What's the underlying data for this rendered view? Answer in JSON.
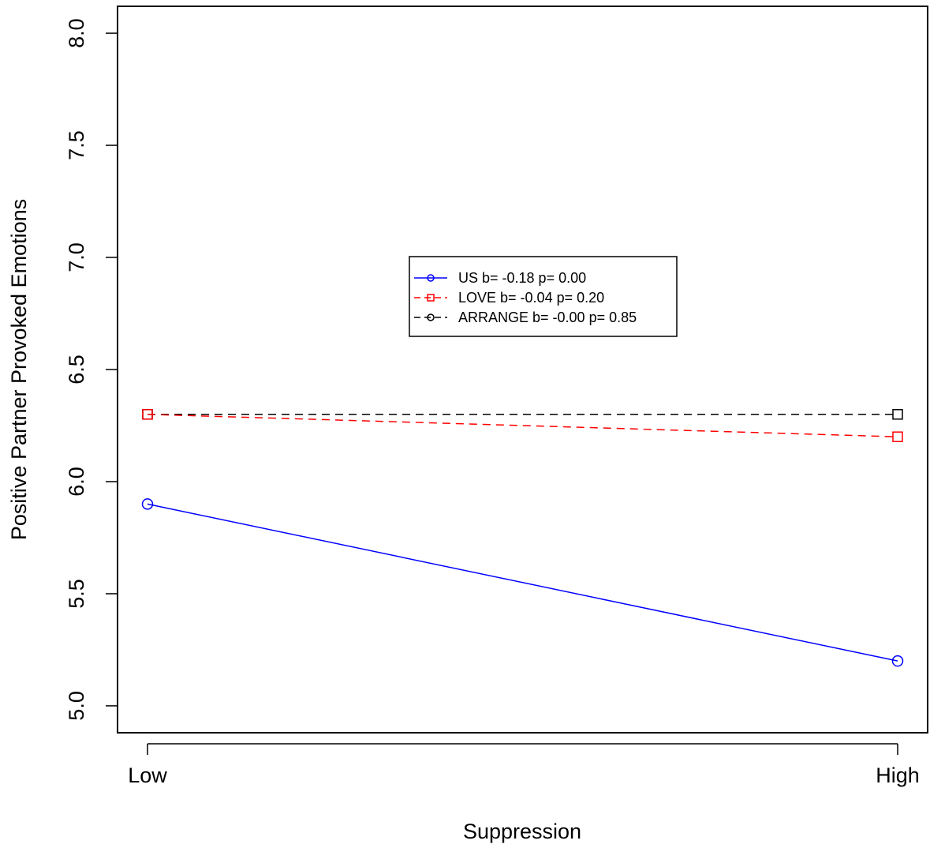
{
  "chart_data": {
    "type": "line",
    "categories": [
      "Low",
      "High"
    ],
    "xlabel": "Suppression",
    "ylabel": "Positive Partner Provoked Emotions",
    "ylim": [
      4.88,
      8.12
    ],
    "yticks": [
      "5.0",
      "5.5",
      "6.0",
      "6.5",
      "7.0",
      "7.5",
      "8.0"
    ],
    "grid": false,
    "legend_position": "center",
    "series": [
      {
        "name": "US b= -0.18 p=  0.00",
        "values": [
          5.9,
          5.2
        ],
        "color": "#0000ff",
        "line": "solid",
        "marker": "circle"
      },
      {
        "name": "LOVE b= -0.04 p=  0.20",
        "values": [
          6.3,
          6.2
        ],
        "color": "#ff0000",
        "line": "dashed",
        "marker": "square"
      },
      {
        "name": "ARRANGE b= -0.00 p=  0.85",
        "values": [
          6.3,
          6.3
        ],
        "color": "#000000",
        "line": "dashed",
        "marker": "square",
        "legend_marker": "circle"
      }
    ]
  }
}
